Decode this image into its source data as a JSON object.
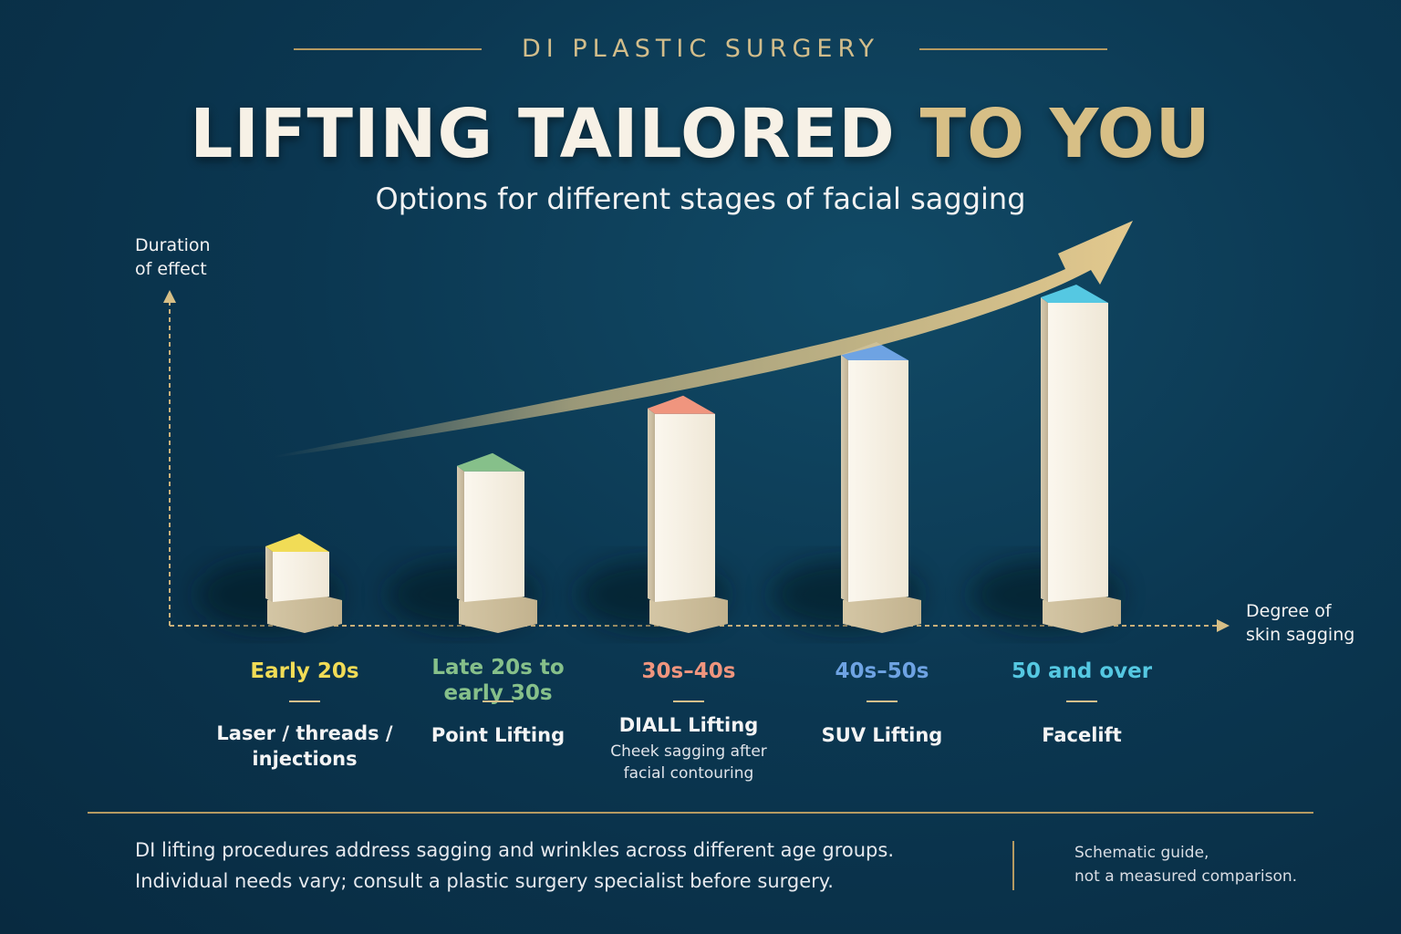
{
  "brand": "DI PLASTIC SURGERY",
  "title_main": "LIFTING TAILORED ",
  "title_accent": "TO YOU",
  "subtitle": "Options for different stages of facial sagging",
  "chart_data": {
    "type": "bar",
    "title": "LIFTING TAILORED TO YOU",
    "subtitle": "Options for different stages of facial sagging",
    "ylabel": "Duration of effect",
    "ylabel_lines": [
      "Duration",
      "of effect"
    ],
    "xlabel": "Degree of skin sagging",
    "xlabel_lines": [
      "Degree of",
      "skin sagging"
    ],
    "ylim": [
      0,
      100
    ],
    "grid": false,
    "legend": "none",
    "trend_arrow": true,
    "categories": [
      "Early 20s",
      "Late 20s to early 30s",
      "30s–40s",
      "40s–50s",
      "50 and over"
    ],
    "category_lines": [
      [
        "Early 20s"
      ],
      [
        "Late 20s to",
        "early 30s"
      ],
      [
        "30s–40s"
      ],
      [
        "40s–50s"
      ],
      [
        "50 and over"
      ]
    ],
    "procedures": [
      {
        "lines": [
          "Laser / threads /",
          "injections"
        ],
        "note": []
      },
      {
        "lines": [
          "Point Lifting"
        ],
        "note": []
      },
      {
        "lines": [
          "DIALL Lifting"
        ],
        "note": [
          "Cheek sagging after",
          "facial contouring"
        ]
      },
      {
        "lines": [
          "SUV Lifting"
        ],
        "note": []
      },
      {
        "lines": [
          "Facelift"
        ],
        "note": []
      }
    ],
    "values": [
      25,
      46,
      61,
      75,
      90
    ],
    "colors": [
      "#f1dc56",
      "#86c08a",
      "#f0957e",
      "#6ea3e3",
      "#55c8e2"
    ]
  },
  "footer": {
    "line1": "DI lifting procedures address sagging and wrinkles across different age groups.",
    "line2": "Individual needs vary; consult a plastic surgery specialist before surgery.",
    "note1": "Schematic guide,",
    "note2": "not a measured comparison."
  }
}
